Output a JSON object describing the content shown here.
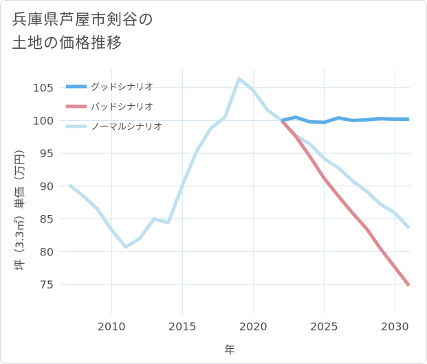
{
  "title_lines": [
    "兵庫県芦屋市剣谷の",
    "土地の価格推移"
  ],
  "colors": {
    "good": "#5aaee8",
    "bad": "#df8b94",
    "normal": "#bfe0ee",
    "grid": "#d6e6f2",
    "axis_text": "#4a4a4a"
  },
  "chart_data": {
    "type": "line",
    "title": "兵庫県芦屋市剣谷の土地の価格推移",
    "xlabel": "年",
    "ylabel": "坪（3.3㎡）単価（万円）",
    "xlim": [
      2006.3,
      2031.1
    ],
    "ylim": [
      70.5,
      107.8
    ],
    "x_ticks": [
      2010,
      2015,
      2020,
      2025,
      2030
    ],
    "y_ticks": [
      75,
      80,
      85,
      90,
      95,
      100,
      105
    ],
    "grid": true,
    "legend_position": "top-left",
    "series": [
      {
        "name": "グッドシナリオ",
        "color": "#5aaee8",
        "x": [
          2022,
          2023,
          2024,
          2025,
          2026,
          2027,
          2028,
          2029,
          2030,
          2031
        ],
        "values": [
          100.0,
          100.5,
          99.8,
          99.7,
          100.4,
          100.0,
          100.1,
          100.3,
          100.2,
          100.2
        ]
      },
      {
        "name": "バッドシナリオ",
        "color": "#df8b94",
        "x": [
          2022,
          2023,
          2024,
          2025,
          2026,
          2027,
          2028,
          2029,
          2030,
          2031
        ],
        "values": [
          100.0,
          97.6,
          94.5,
          91.2,
          88.5,
          85.9,
          83.5,
          80.4,
          77.6,
          74.8
        ]
      },
      {
        "name": "ノーマルシナリオ",
        "color": "#bfe0ee",
        "x": [
          2007,
          2008,
          2009,
          2010,
          2011,
          2012,
          2013,
          2014,
          2015,
          2016,
          2017,
          2018,
          2019,
          2020,
          2021,
          2022,
          2023,
          2024,
          2025,
          2026,
          2027,
          2028,
          2029,
          2030,
          2031
        ],
        "values": [
          90.2,
          88.5,
          86.5,
          83.3,
          80.7,
          82.0,
          85.0,
          84.4,
          90.1,
          95.3,
          98.8,
          100.5,
          106.4,
          104.6,
          101.6,
          100.0,
          97.7,
          96.4,
          94.2,
          92.8,
          90.8,
          89.2,
          87.2,
          85.9,
          83.6
        ]
      }
    ]
  }
}
